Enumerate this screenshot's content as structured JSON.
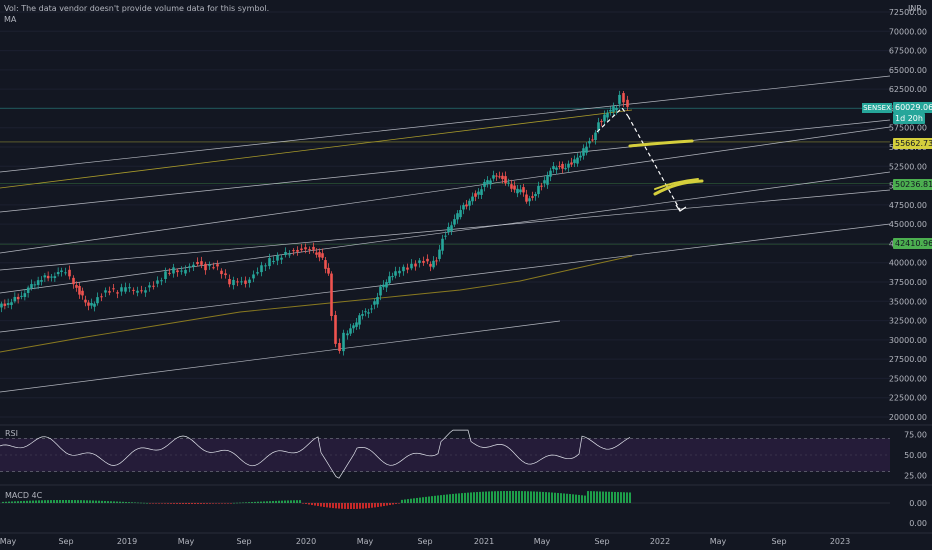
{
  "overlays": {
    "vol_note": "Vol: The data vendor doesn't provide volume data for this symbol.",
    "ma_label": "MA",
    "rsi_label": "RSI",
    "macd_label": "MACD 4C",
    "currency": "INR"
  },
  "symbol_tag": {
    "name": "SENSEX",
    "price": "60029.06",
    "countdown": "1d 20h"
  },
  "price_tags": [
    {
      "value": "55662.73",
      "price": 55662.73
    },
    {
      "value": "50236.81",
      "price": 50236.81
    },
    {
      "value": "42410.96",
      "price": 42410.96
    }
  ],
  "colors": {
    "up": "#26a69a",
    "down": "#ef5350",
    "tag_green": "#4caf50",
    "tag_yellow": "#d5cf3c",
    "highlight": "#d5cf3c",
    "rsi_fill": "#2a1e40",
    "ma": "#8a7a20"
  },
  "chart_data": {
    "type": "candlestick",
    "price_axis": {
      "min": 20000,
      "max": 72500,
      "step": 2500,
      "tick_labels": [
        "20000.00",
        "22500.00",
        "25000.00",
        "27500.00",
        "30000.00",
        "32500.00",
        "35000.00",
        "37500.00",
        "40000.00",
        "42500.00",
        "45000.00",
        "47500.00",
        "50000.00",
        "52500.00",
        "55000.00",
        "57500.00",
        "60000.00",
        "62500.00",
        "65000.00",
        "67500.00",
        "70000.00",
        "72500.00"
      ]
    },
    "time_axis": [
      "May",
      "Sep",
      "2019",
      "May",
      "Sep",
      "2020",
      "May",
      "Sep",
      "2021",
      "May",
      "Sep",
      "2022",
      "May",
      "Sep",
      "2023"
    ],
    "weekly_close_path": [
      [
        0,
        34200
      ],
      [
        10,
        34800
      ],
      [
        20,
        35500
      ],
      [
        30,
        36500
      ],
      [
        40,
        37800
      ],
      [
        50,
        38200
      ],
      [
        60,
        38500
      ],
      [
        68,
        38900
      ],
      [
        72,
        38000
      ],
      [
        78,
        36800
      ],
      [
        84,
        35500
      ],
      [
        90,
        34200
      ],
      [
        96,
        34800
      ],
      [
        104,
        35900
      ],
      [
        112,
        36400
      ],
      [
        120,
        36200
      ],
      [
        128,
        36900
      ],
      [
        136,
        36400
      ],
      [
        144,
        36200
      ],
      [
        152,
        36800
      ],
      [
        160,
        37400
      ],
      [
        168,
        38600
      ],
      [
        176,
        39200
      ],
      [
        184,
        38900
      ],
      [
        192,
        39600
      ],
      [
        200,
        40000
      ],
      [
        208,
        39300
      ],
      [
        216,
        39700
      ],
      [
        224,
        38800
      ],
      [
        232,
        37400
      ],
      [
        240,
        37600
      ],
      [
        248,
        37200
      ],
      [
        256,
        38300
      ],
      [
        264,
        39400
      ],
      [
        272,
        40300
      ],
      [
        280,
        40700
      ],
      [
        288,
        41200
      ],
      [
        296,
        41500
      ],
      [
        304,
        41700
      ],
      [
        312,
        41900
      ],
      [
        318,
        41300
      ],
      [
        324,
        40600
      ],
      [
        330,
        38300
      ],
      [
        334,
        33000
      ],
      [
        338,
        29500
      ],
      [
        342,
        28600
      ],
      [
        346,
        30800
      ],
      [
        352,
        31200
      ],
      [
        358,
        32200
      ],
      [
        364,
        33600
      ],
      [
        370,
        33800
      ],
      [
        376,
        34900
      ],
      [
        382,
        36600
      ],
      [
        388,
        37400
      ],
      [
        394,
        38500
      ],
      [
        402,
        39200
      ],
      [
        410,
        39400
      ],
      [
        418,
        39800
      ],
      [
        426,
        40200
      ],
      [
        432,
        39600
      ],
      [
        438,
        40500
      ],
      [
        444,
        43200
      ],
      [
        450,
        44400
      ],
      [
        456,
        45400
      ],
      [
        462,
        46900
      ],
      [
        468,
        47600
      ],
      [
        474,
        48700
      ],
      [
        480,
        49000
      ],
      [
        486,
        50200
      ],
      [
        492,
        50700
      ],
      [
        498,
        51500
      ],
      [
        504,
        51000
      ],
      [
        510,
        50200
      ],
      [
        516,
        49200
      ],
      [
        522,
        49500
      ],
      [
        528,
        48200
      ],
      [
        534,
        48600
      ],
      [
        540,
        49800
      ],
      [
        546,
        50400
      ],
      [
        552,
        51900
      ],
      [
        558,
        52600
      ],
      [
        564,
        52400
      ],
      [
        570,
        52700
      ],
      [
        576,
        53100
      ],
      [
        582,
        53800
      ],
      [
        588,
        55300
      ],
      [
        594,
        56200
      ],
      [
        600,
        58100
      ],
      [
        606,
        58900
      ],
      [
        612,
        59700
      ],
      [
        618,
        60300
      ],
      [
        622,
        61700
      ],
      [
        626,
        60900
      ],
      [
        630,
        60029
      ]
    ],
    "markers": {
      "current_price": 60029.06
    },
    "rsi": {
      "levels": [
        25,
        50,
        75
      ],
      "dashed": [
        30,
        70
      ],
      "range": [
        15,
        85
      ]
    },
    "macd": {
      "levels": [
        0.0
      ],
      "axis_labels": [
        "0.00",
        "0.00"
      ]
    }
  }
}
